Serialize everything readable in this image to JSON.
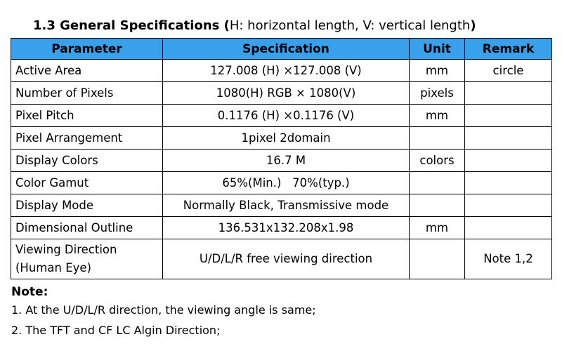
{
  "heading": {
    "bold": "1.3 General Specifications (",
    "normal": "H: horizontal length, V: vertical length",
    "bold_close": ")"
  },
  "table": {
    "headers": [
      "Parameter",
      "Specification",
      "Unit",
      "Remark"
    ],
    "rows": [
      {
        "parameter": "Active Area",
        "spec": "127.008 (H) ×127.008 (V)",
        "unit": "mm",
        "remark": "circle"
      },
      {
        "parameter": "Number of Pixels",
        "spec": "1080(H) RGB × 1080(V)",
        "unit": "pixels",
        "remark": ""
      },
      {
        "parameter": "Pixel Pitch",
        "spec": "0.1176 (H) ×0.1176 (V)",
        "unit": "mm",
        "remark": ""
      },
      {
        "parameter": "Pixel Arrangement",
        "spec": "1pixel 2domain",
        "unit": "",
        "remark": ""
      },
      {
        "parameter": "Display Colors",
        "spec": "16.7 M",
        "unit": "colors",
        "remark": ""
      },
      {
        "parameter": "Color Gamut",
        "spec": "65%(Min.)   70%(typ.)",
        "unit": "",
        "remark": ""
      },
      {
        "parameter": "Display Mode",
        "spec": "Normally Black, Transmissive mode",
        "unit": "",
        "remark": ""
      },
      {
        "parameter": "Dimensional Outline",
        "spec": "136.531x132.208x1.98",
        "unit": "mm",
        "remark": ""
      }
    ],
    "last_row": {
      "parameter_line1": "Viewing Direction",
      "parameter_line2": "(Human Eye)",
      "spec": "U/D/L/R free viewing direction",
      "unit": "",
      "remark": "Note 1,2"
    }
  },
  "notes": {
    "title": "Note:",
    "items": [
      "1. At the U/D/L/R direction, the viewing angle is same;",
      "2. The TFT and CF LC Algin Direction;"
    ]
  },
  "colors": {
    "header_background": "#39a0ec"
  }
}
